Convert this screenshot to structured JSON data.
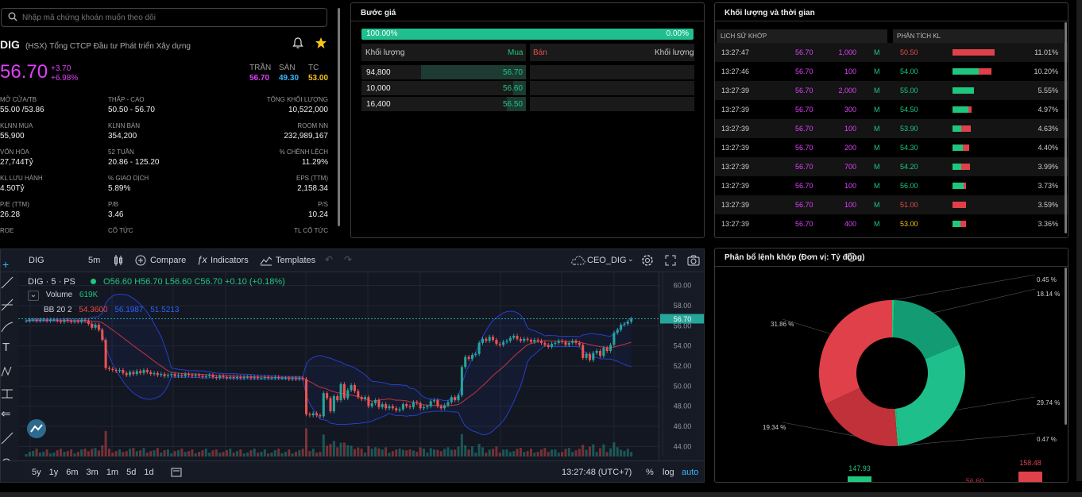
{
  "search": {
    "placeholder": "Nhập mã chứng khoán muốn theo dõi"
  },
  "stock": {
    "symbol": "DIG",
    "exchange": "(HSX)",
    "name": "Tổng CTCP Đầu tư Phát triển Xây dựng",
    "price": "56.70",
    "change": "+3.70",
    "change_pct": "+6.98%",
    "ceiling_label": "TRẦN",
    "ceiling": "56.70",
    "floor_label": "SÀN",
    "floor": "49.30",
    "ref_label": "TC",
    "ref": "53.00",
    "stats": [
      {
        "l1": "MỞ CỬA/TB",
        "v1": "55.00 /53.86",
        "l2": "THẤP - CAO",
        "v2": "50.50 - 56.70",
        "l3": "TỔNG KHỐI LƯỢNG",
        "v3": "10,522,000"
      },
      {
        "l1": "KLNN MUA",
        "v1": "55,900",
        "l2": "KLNN BÁN",
        "v2": "354,200",
        "l3": "ROOM NN",
        "v3": "232,989,167"
      },
      {
        "l1": "VỐN HÓA",
        "v1": "27,744Tỷ",
        "l2": "52 TUẦN",
        "v2": "20.86 - 125.20",
        "l3": "% CHÊNH LỆCH",
        "v3": "11.29%"
      },
      {
        "l1": "KL LƯU HÀNH",
        "v1": "4.50Tỷ",
        "l2": "% GIAO DỊCH",
        "v2": "5.89%",
        "l3": "EPS (TTM)",
        "v3": "2,158.34"
      },
      {
        "l1": "P/E (TTM)",
        "v1": "26.28",
        "l2": "P/B",
        "v2": "3.46",
        "l3": "P/S",
        "v3": "10.24"
      },
      {
        "l1": "ROE",
        "v1": "",
        "l2": "CỔ TỨC",
        "v2": "",
        "l3": "TL CỔ TỨC",
        "v3": ""
      }
    ]
  },
  "orderbook": {
    "title": "Bước giá",
    "buy_pct": "100.00%",
    "sell_pct": "0.00%",
    "col_vol": "Khối lượng",
    "col_buy": "Mua",
    "col_sell": "Bán",
    "col_vol2": "Khối lượng",
    "rows": [
      {
        "vol": "94,800",
        "price": "56.70",
        "depth": 1.0
      },
      {
        "vol": "10,000",
        "price": "56.60",
        "depth": 0.12
      },
      {
        "vol": "16,400",
        "price": "56.50",
        "depth": 0.18
      }
    ]
  },
  "trades": {
    "title": "Khối lượng và thời gian",
    "tab_history": "LỊCH SỬ KHỚP",
    "tab_analysis": "PHÂN TÍCH KL",
    "rows": [
      {
        "time": "13:27:47",
        "price": "56.70",
        "vol": "1,000",
        "side": "M",
        "ap": "50.50",
        "apc": "red",
        "g": 0.0,
        "r": 1.0,
        "pct": "11.01%"
      },
      {
        "time": "13:27:46",
        "price": "56.70",
        "vol": "100",
        "side": "M",
        "ap": "54.00",
        "apc": "grn",
        "g": 0.62,
        "r": 0.31,
        "pct": "10.20%"
      },
      {
        "time": "13:27:39",
        "price": "56.70",
        "vol": "2,000",
        "side": "M",
        "ap": "55.00",
        "apc": "grn",
        "g": 0.5,
        "r": 0.0,
        "pct": "5.55%"
      },
      {
        "time": "13:27:39",
        "price": "56.70",
        "vol": "300",
        "side": "M",
        "ap": "54.50",
        "apc": "grn",
        "g": 0.38,
        "r": 0.08,
        "pct": "4.97%"
      },
      {
        "time": "13:27:39",
        "price": "56.70",
        "vol": "100",
        "side": "M",
        "ap": "53.90",
        "apc": "grn",
        "g": 0.2,
        "r": 0.23,
        "pct": "4.63%"
      },
      {
        "time": "13:27:39",
        "price": "56.70",
        "vol": "200",
        "side": "M",
        "ap": "54.30",
        "apc": "grn",
        "g": 0.25,
        "r": 0.15,
        "pct": "4.40%"
      },
      {
        "time": "13:27:39",
        "price": "56.70",
        "vol": "700",
        "side": "M",
        "ap": "54.20",
        "apc": "grn",
        "g": 0.2,
        "r": 0.2,
        "pct": "3.99%"
      },
      {
        "time": "13:27:39",
        "price": "56.70",
        "vol": "100",
        "side": "M",
        "ap": "56.00",
        "apc": "grn",
        "g": 0.26,
        "r": 0.06,
        "pct": "3.73%"
      },
      {
        "time": "13:27:39",
        "price": "56.70",
        "vol": "100",
        "side": "M",
        "ap": "51.00",
        "apc": "red",
        "g": 0.0,
        "r": 0.32,
        "pct": "3.59%"
      },
      {
        "time": "13:27:39",
        "price": "56.70",
        "vol": "400",
        "side": "M",
        "ap": "53.00",
        "apc": "yel",
        "g": 0.18,
        "r": 0.14,
        "pct": "3.36%"
      }
    ]
  },
  "distribution": {
    "title": "Phân bổ lệnh khớp (Đơn vị: Tỷ đồng)",
    "chart_data": {
      "type": "pie",
      "categories": [
        "0.45 %",
        "18.14 %",
        "29.74 %",
        "0.47 %",
        "19.34 %",
        "31.86 %"
      ],
      "values": [
        0.45,
        18.14,
        29.74,
        0.47,
        19.34,
        31.86
      ],
      "colors": [
        "#1fc77e",
        "#139c74",
        "#1ebf8a",
        "#1fc77e",
        "#c0313a",
        "#e0404a"
      ]
    },
    "bar_labels": [
      "147.93",
      "158.48",
      "56.60"
    ]
  },
  "toolbar": {
    "symbol": "DIG",
    "interval": "5m",
    "compare": "Compare",
    "indicators": "Indicators",
    "templates": "Templates",
    "layout": "CEO_DIG"
  },
  "legend": {
    "title": "DIG · 5 · PS",
    "o": "O56.60",
    "h": "H56.70",
    "l": "L56.60",
    "c": "C56.70",
    "chg": "+0.10 (+0.18%)",
    "volume_label": "Volume",
    "volume": "619K",
    "bb": "BB 20 2",
    "bb_v1": "54.3600",
    "bb_v2": "56.1987",
    "bb_v3": "51.5213"
  },
  "bottombar": {
    "ranges": [
      "5y",
      "1y",
      "6m",
      "3m",
      "1m",
      "5d",
      "1d"
    ],
    "clock": "13:27:48 (UTC+7)",
    "pct": "%",
    "log": "log",
    "auto": "auto"
  },
  "chart_data": {
    "type": "candlestick",
    "ylim": [
      43,
      61
    ],
    "yticks": [
      "60.00",
      "58.00",
      "56.00",
      "54.00",
      "52.00",
      "50.00",
      "48.00",
      "46.00",
      "44.00"
    ],
    "last_price": "56.70",
    "xticks": [
      "13:00",
      "9",
      "10:30",
      "13:00",
      "10",
      "10:30",
      "13:00",
      "11",
      "10:30",
      "13:00",
      "14:00"
    ],
    "closes": [
      56.5,
      56.6,
      56.6,
      56.5,
      56.6,
      56.6,
      56.5,
      56.6,
      56.6,
      56.5,
      56.4,
      56.6,
      56.5,
      56.4,
      56.5,
      56.4,
      56.6,
      56.5,
      56.2,
      55.8,
      56.1,
      55.6,
      54.6,
      51.8,
      51.7,
      51.6,
      51.5,
      51.6,
      51.3,
      51.1,
      51.4,
      51.2,
      51.5,
      51.3,
      51.6,
      51.4,
      51.2,
      51.3,
      51.1,
      51.2,
      51.0,
      51.1,
      51.2,
      51.0,
      51.1,
      51.0,
      51.2,
      51.1,
      51.0,
      51.1,
      51.0,
      50.9,
      51.0,
      51.1,
      50.9,
      50.8,
      51.0,
      50.9,
      50.8,
      50.9,
      50.8,
      50.9,
      50.8,
      50.9,
      50.9,
      50.8,
      50.9,
      50.8,
      50.8,
      50.9,
      50.8,
      50.8,
      50.9,
      50.8,
      50.8,
      50.8,
      50.7,
      50.8,
      50.7,
      50.8,
      50.7,
      47.2,
      47.1,
      47.3,
      47.1,
      47.0,
      49.3,
      48.8,
      47.5,
      49.0,
      48.6,
      50.2,
      48.8,
      49.6,
      50.1,
      49.5,
      48.9,
      48.7,
      48.9,
      48.0,
      48.3,
      48.6,
      47.9,
      48.2,
      47.8,
      48.0,
      47.8,
      47.6,
      47.7,
      48.2,
      48.0,
      47.9,
      48.4,
      48.3,
      47.8,
      47.9,
      48.0,
      48.5,
      48.6,
      48.0,
      47.8,
      48.1,
      48.4,
      48.9,
      48.6,
      49.1,
      51.9,
      52.9,
      52.7,
      53.1,
      53.2,
      54.3,
      54.7,
      54.5,
      54.9,
      54.6,
      54.2,
      54.1,
      54.4,
      54.5,
      54.8,
      55.0,
      54.7,
      54.5,
      54.7,
      54.6,
      54.4,
      54.6,
      54.5,
      54.3,
      54.1,
      53.9,
      54.2,
      54.3,
      54.5,
      54.4,
      54.1,
      54.3,
      54.5,
      54.3,
      54.1,
      52.8,
      53.2,
      52.6,
      53.3,
      53.5,
      53.0,
      53.8,
      53.5,
      54.1,
      55.3,
      55.6,
      56.1,
      56.2,
      56.4,
      56.7
    ]
  }
}
